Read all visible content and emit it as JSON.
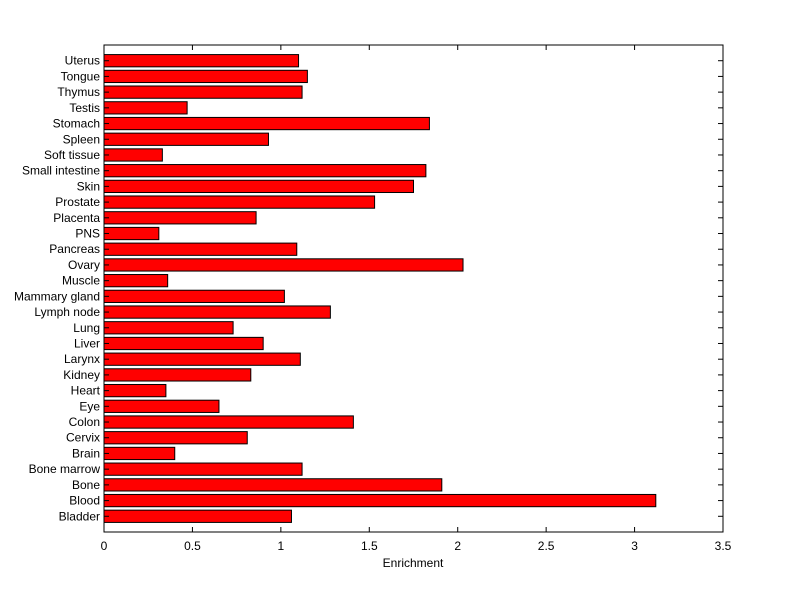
{
  "chart_data": {
    "type": "bar",
    "orientation": "horizontal",
    "xlabel": "Enrichment",
    "ylabel": "",
    "title": "",
    "xlim": [
      0,
      3.5
    ],
    "xticks": [
      "0",
      "0.5",
      "1",
      "1.5",
      "2",
      "2.5",
      "3",
      "3.5"
    ],
    "categories": [
      "Bladder",
      "Blood",
      "Bone",
      "Bone marrow",
      "Brain",
      "Cervix",
      "Colon",
      "Eye",
      "Heart",
      "Kidney",
      "Larynx",
      "Liver",
      "Lung",
      "Lymph node",
      "Mammary gland",
      "Muscle",
      "Ovary",
      "Pancreas",
      "PNS",
      "Placenta",
      "Prostate",
      "Skin",
      "Small intestine",
      "Soft tissue",
      "Spleen",
      "Stomach",
      "Testis",
      "Thymus",
      "Tongue",
      "Uterus"
    ],
    "values": [
      1.06,
      3.12,
      1.91,
      1.12,
      0.4,
      0.81,
      1.41,
      0.65,
      0.35,
      0.83,
      1.11,
      0.9,
      0.73,
      1.28,
      1.02,
      0.36,
      2.03,
      1.09,
      0.31,
      0.86,
      1.53,
      1.75,
      1.82,
      0.33,
      0.93,
      1.84,
      0.47,
      1.12,
      1.15,
      1.1
    ],
    "bar_color": "#ff0000",
    "bar_edge_color": "#000000",
    "grid": false
  }
}
